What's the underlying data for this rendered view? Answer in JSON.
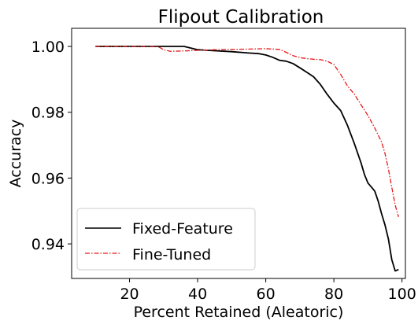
{
  "chart_data": {
    "type": "line",
    "title": "Flipout Calibration",
    "xlabel": "Percent Retained (Aleatoric)",
    "ylabel": "Accuracy",
    "xlim": [
      3,
      101
    ],
    "ylim": [
      0.9295,
      1.0055
    ],
    "xticks": [
      20,
      40,
      60,
      80,
      100
    ],
    "yticks": [
      0.94,
      0.96,
      0.98,
      1.0
    ],
    "xtick_labels": [
      "20",
      "40",
      "60",
      "80",
      "100"
    ],
    "ytick_labels": [
      "0.94",
      "0.96",
      "0.98",
      "1.00"
    ],
    "grid": false,
    "legend_position": "lower-left",
    "series": [
      {
        "name": "Fixed-Feature",
        "color": "#000000",
        "style": "solid",
        "x": [
          10,
          20,
          30,
          36,
          40,
          45,
          50,
          55,
          58,
          60,
          62,
          64,
          66,
          68,
          70,
          72,
          74,
          76,
          78,
          80,
          82,
          84,
          86,
          88,
          89,
          90,
          91,
          92,
          93,
          94,
          95,
          96,
          97,
          98,
          99
        ],
        "y": [
          1.0,
          1.0,
          1.0,
          1.0,
          0.999,
          0.9987,
          0.9984,
          0.998,
          0.9978,
          0.9974,
          0.9967,
          0.9958,
          0.9955,
          0.9948,
          0.9935,
          0.9922,
          0.9908,
          0.9885,
          0.9855,
          0.9828,
          0.9805,
          0.976,
          0.9705,
          0.9645,
          0.961,
          0.9585,
          0.9573,
          0.956,
          0.953,
          0.9492,
          0.9458,
          0.9415,
          0.9352,
          0.9318,
          0.9322
        ]
      },
      {
        "name": "Fine-Tuned",
        "color": "#e41a1c",
        "style": "dashdot",
        "x": [
          10,
          20,
          28,
          29,
          30,
          32,
          35,
          40,
          45,
          50,
          55,
          60,
          64,
          66,
          68,
          70,
          72,
          74,
          76,
          78,
          80,
          82,
          84,
          86,
          88,
          90,
          92,
          94,
          95,
          96,
          97,
          98,
          99
        ],
        "y": [
          1.0,
          1.0,
          1.0,
          0.9996,
          0.999,
          0.9985,
          0.9986,
          0.9988,
          0.999,
          0.9991,
          0.9992,
          0.9993,
          0.9991,
          0.9982,
          0.9972,
          0.9966,
          0.9963,
          0.9961,
          0.996,
          0.9955,
          0.9945,
          0.9915,
          0.988,
          0.9855,
          0.9822,
          0.979,
          0.9752,
          0.971,
          0.9675,
          0.9628,
          0.9572,
          0.9518,
          0.9482
        ]
      }
    ]
  }
}
